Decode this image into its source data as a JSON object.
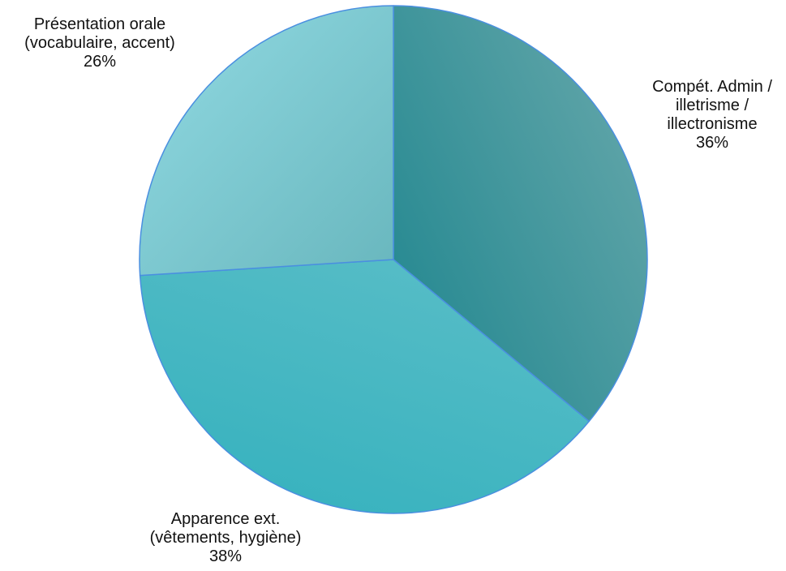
{
  "chart_data": {
    "type": "pie",
    "slices": [
      {
        "label_lines": [
          "Compét. Admin /",
          "illetrisme /",
          "illectronisme"
        ],
        "value": 36,
        "value_label": "36%",
        "color_outer": "#5aa2a6",
        "color_inner": "#2a8b93"
      },
      {
        "label_lines": [
          "Apparence ext.",
          "(vêtements, hygiène)"
        ],
        "value": 38,
        "value_label": "38%",
        "color_outer": "#3ab3bf",
        "color_inner": "#55bcc6"
      },
      {
        "label_lines": [
          "Présentation orale",
          "(vocabulaire, accent)"
        ],
        "value": 26,
        "value_label": "26%",
        "color_outer": "#86d0d8",
        "color_inner": "#6ab8bf"
      }
    ],
    "start_angle_deg": 0,
    "direction": "clockwise",
    "stroke_color": "#4a8fe0",
    "legend": "none"
  }
}
